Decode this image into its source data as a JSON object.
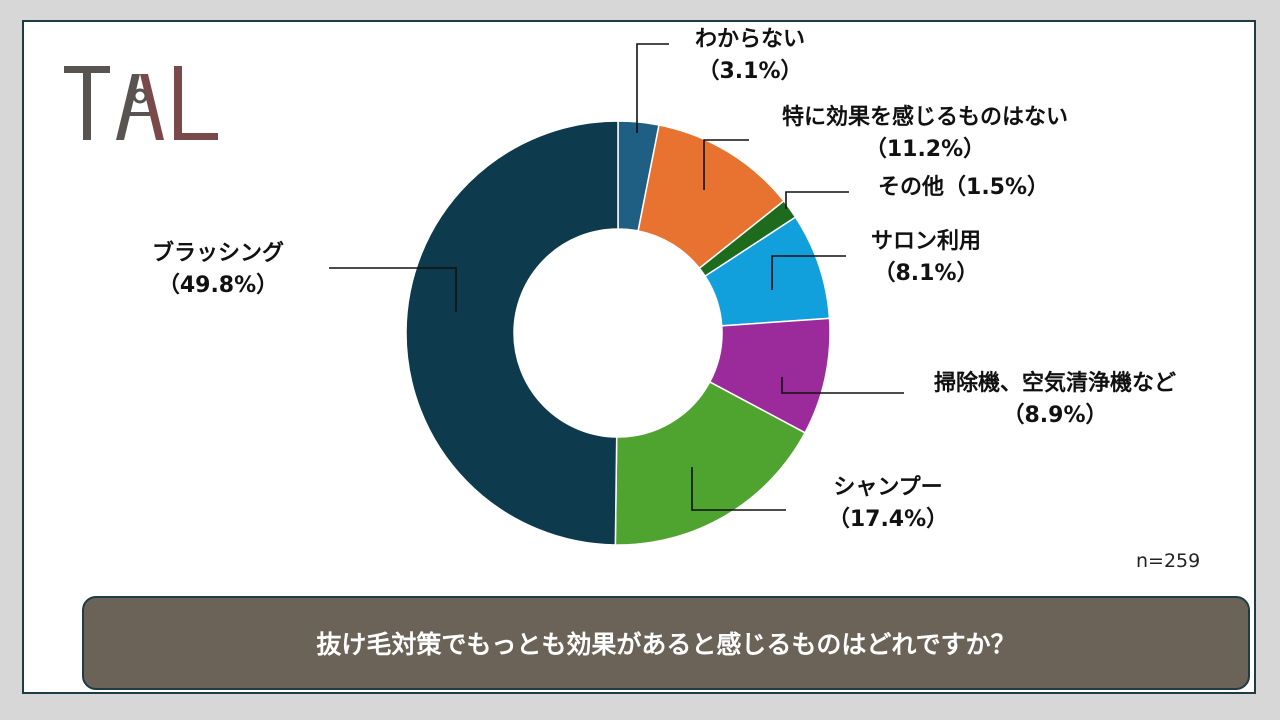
{
  "logo": {
    "text": "TAL",
    "colors": {
      "left": "#5a5450",
      "right": "#7a4a4a"
    }
  },
  "chart_data": {
    "type": "pie",
    "variant": "donut",
    "start": "top",
    "direction": "clockwise",
    "slices": [
      {
        "name": "わからない",
        "value": 3.1,
        "label": "（3.1%）",
        "color": "#1f5f84"
      },
      {
        "name": "特に効果を感じるものはない",
        "value": 11.2,
        "label": "（11.2%）",
        "color": "#e87330"
      },
      {
        "name": "その他",
        "value": 1.5,
        "label": "（1.5%）",
        "color": "#1e6b1e"
      },
      {
        "name": "サロン利用",
        "value": 8.1,
        "label": "（8.1%）",
        "color": "#12a0dc"
      },
      {
        "name": "掃除機、空気清浄機など",
        "value": 8.9,
        "label": "（8.9%）",
        "color": "#9b2b9b"
      },
      {
        "name": "シャンプー",
        "value": 17.4,
        "label": "（17.4%）",
        "color": "#4fa32f"
      },
      {
        "name": "ブラッシング",
        "value": 49.8,
        "label": "（49.8%）",
        "color": "#0e3a4d"
      }
    ],
    "n": "n=259"
  },
  "question": "抜け毛対策でもっとも効果があると感じるものはどれですか？"
}
